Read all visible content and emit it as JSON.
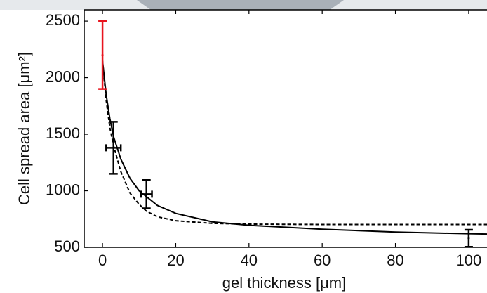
{
  "chart_data": {
    "type": "errorbar",
    "xlabel": "gel thickness [μm]",
    "ylabel": "Cell spread area [μm²]",
    "xlim": [
      -5,
      105
    ],
    "ylim": [
      500,
      2600
    ],
    "xticks": [
      0,
      20,
      40,
      60,
      80,
      100
    ],
    "yticks": [
      500,
      1000,
      1500,
      2000,
      2500
    ],
    "lines": [
      {
        "style": "solid",
        "color": "#000000",
        "x": [
          0,
          1,
          2,
          3,
          5,
          7.5,
          10,
          15,
          20,
          30,
          40,
          60,
          80,
          100,
          105
        ],
        "values": [
          2150,
          1850,
          1640,
          1480,
          1280,
          1110,
          1000,
          870,
          800,
          725,
          695,
          660,
          635,
          620,
          617
        ]
      },
      {
        "style": "dashed",
        "color": "#000000",
        "x": [
          0,
          1,
          2,
          3,
          5,
          7.5,
          10,
          12,
          15,
          20,
          30,
          40,
          60,
          80,
          100,
          105
        ],
        "values": [
          2150,
          1800,
          1560,
          1400,
          1170,
          980,
          880,
          820,
          770,
          735,
          712,
          705,
          702,
          702,
          702,
          702
        ]
      }
    ],
    "points": {
      "x": [
        0,
        3,
        12,
        100
      ],
      "values": [
        2200,
        1380,
        970,
        580
      ],
      "yerr": [
        300,
        230,
        125,
        75
      ],
      "xerr": [
        0,
        2,
        1.5,
        0
      ],
      "colors": [
        "#e8141e",
        "#000000",
        "#000000",
        "#000000"
      ]
    }
  }
}
